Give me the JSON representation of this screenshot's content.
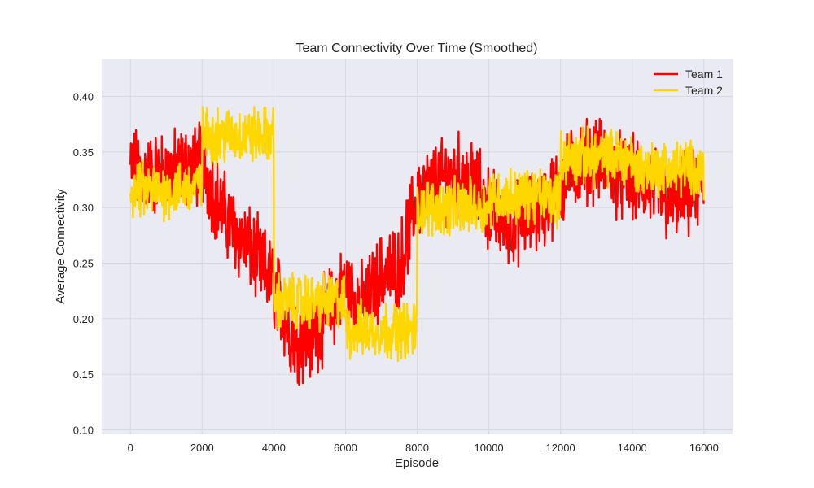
{
  "chart_data": {
    "type": "line",
    "title": "Team Connectivity Over Time (Smoothed)",
    "xlabel": "Episode",
    "ylabel": "Average Connectivity",
    "xlim": [
      -800,
      16800
    ],
    "ylim": [
      0.096,
      0.434
    ],
    "xticks": [
      0,
      2000,
      4000,
      6000,
      8000,
      10000,
      12000,
      14000,
      16000
    ],
    "yticks": [
      0.1,
      0.15,
      0.2,
      0.25,
      0.3,
      0.35,
      0.4
    ],
    "xtick_labels": [
      "0",
      "2000",
      "4000",
      "6000",
      "8000",
      "10000",
      "12000",
      "14000",
      "16000"
    ],
    "ytick_labels": [
      "0.10",
      "0.15",
      "0.20",
      "0.25",
      "0.30",
      "0.35",
      "0.40"
    ],
    "grid": true,
    "legend_position": "top-right",
    "background_color": "#eaeaf2",
    "grid_color": "#d8d8e0",
    "series": [
      {
        "name": "Team 1",
        "color": "#ff0000",
        "amplitude": 0.03,
        "x": [
          0,
          500,
          1000,
          1500,
          2000,
          2500,
          3000,
          3500,
          4000,
          4500,
          5000,
          5500,
          6000,
          6500,
          7000,
          7500,
          8000,
          8500,
          9000,
          9500,
          10000,
          10500,
          11000,
          11500,
          12000,
          12500,
          13000,
          13500,
          14000,
          14500,
          15000,
          15500,
          16000
        ],
        "y": [
          0.335,
          0.33,
          0.33,
          0.335,
          0.34,
          0.3,
          0.275,
          0.255,
          0.23,
          0.185,
          0.18,
          0.205,
          0.23,
          0.21,
          0.24,
          0.245,
          0.31,
          0.32,
          0.33,
          0.325,
          0.3,
          0.285,
          0.29,
          0.3,
          0.32,
          0.34,
          0.345,
          0.33,
          0.325,
          0.32,
          0.305,
          0.31,
          0.315
        ]
      },
      {
        "name": "Team 2",
        "color": "#ffd700",
        "amplitude": 0.02,
        "x": [
          0,
          999,
          1999,
          2000,
          3000,
          3999,
          4000,
          5000,
          5999,
          6000,
          7000,
          7999,
          8000,
          9000,
          9999,
          10000,
          11000,
          11999,
          12000,
          13000,
          13999,
          14000,
          15000,
          16000
        ],
        "y": [
          0.315,
          0.315,
          0.32,
          0.365,
          0.365,
          0.365,
          0.215,
          0.215,
          0.215,
          0.19,
          0.19,
          0.19,
          0.3,
          0.3,
          0.3,
          0.31,
          0.31,
          0.31,
          0.345,
          0.345,
          0.345,
          0.335,
          0.335,
          0.335
        ]
      }
    ]
  }
}
